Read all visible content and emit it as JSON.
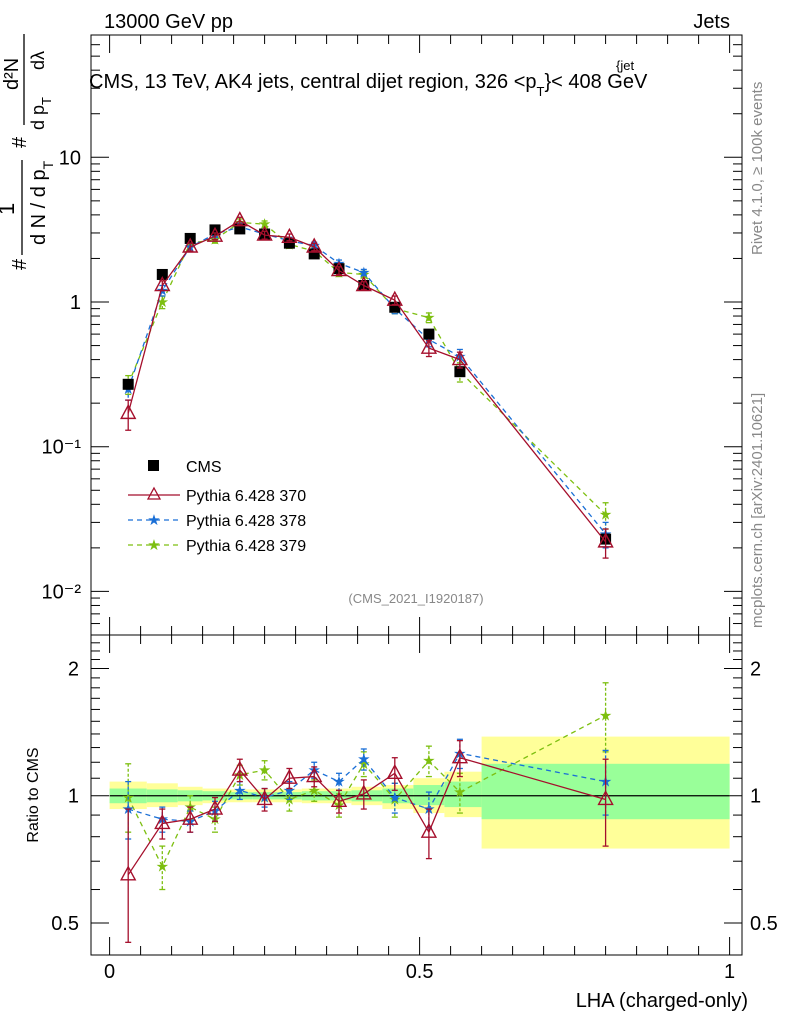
{
  "header": {
    "energy_label": "13000 GeV pp",
    "process_label": "Jets",
    "plot_title": "CMS, 13 TeV, AK4 jets, central dijet region, 326 <p",
    "plot_title_sub": "T",
    "plot_title_sup": "{jet",
    "plot_title_tail": "}< 408 GeV"
  },
  "side": {
    "rivet_label": "Rivet 4.1.0, ≥ 100k events",
    "mcplots_label": "mcplots.cern.ch [arXiv:2401.10621]"
  },
  "watermark": "(CMS_2021_I1920187)",
  "ylabel_top": {
    "hash_a": "#",
    "hash_b": "#",
    "one": "1",
    "dN": "d N / d p",
    "dN_sub": "T",
    "d2N": "d²N",
    "dpT": "d p",
    "dpT_sub": "T",
    "dlambda": "dλ"
  },
  "ylabel_bottom": "Ratio to CMS",
  "xlabel": "LHA (charged-only)",
  "colors": {
    "cms": "#000000",
    "p370": "#a50f2c",
    "p378": "#1a6fd6",
    "p379": "#7dbf10",
    "band_inner": "#99ff99",
    "band_outer": "#ffff99"
  },
  "chart_data": [
    {
      "type": "scatter",
      "scale": "log",
      "xlim": [
        -0.03,
        1.02
      ],
      "ylim": [
        0.005,
        70
      ],
      "ytick_labels": [
        "10⁻²",
        "10⁻¹",
        "1",
        "10"
      ],
      "legend_placement": "middle-left",
      "series": [
        {
          "name": "CMS",
          "x": [
            0.03,
            0.085,
            0.13,
            0.17,
            0.21,
            0.25,
            0.29,
            0.33,
            0.37,
            0.41,
            0.46,
            0.515,
            0.565,
            0.8
          ],
          "y": [
            0.27,
            1.55,
            2.75,
            3.15,
            3.2,
            2.95,
            2.55,
            2.15,
            1.7,
            1.3,
            0.92,
            0.6,
            0.33,
            0.023
          ]
        },
        {
          "name": "Pythia 6.428 370",
          "x": [
            0.03,
            0.085,
            0.13,
            0.17,
            0.21,
            0.25,
            0.29,
            0.33,
            0.37,
            0.41,
            0.46,
            0.515,
            0.565,
            0.8
          ],
          "y": [
            0.17,
            1.3,
            2.4,
            2.85,
            3.65,
            2.9,
            2.8,
            2.4,
            1.65,
            1.3,
            1.03,
            0.48,
            0.4,
            0.022
          ],
          "err_hi": [
            0.04,
            0.1,
            0.15,
            0.15,
            0.2,
            0.18,
            0.15,
            0.14,
            0.1,
            0.08,
            0.07,
            0.06,
            0.05,
            0.005
          ],
          "err_lo": [
            0.04,
            0.1,
            0.15,
            0.15,
            0.2,
            0.18,
            0.15,
            0.14,
            0.1,
            0.08,
            0.07,
            0.06,
            0.05,
            0.005
          ]
        },
        {
          "name": "Pythia 6.428 378",
          "x": [
            0.03,
            0.085,
            0.13,
            0.17,
            0.21,
            0.25,
            0.29,
            0.33,
            0.37,
            0.41,
            0.46,
            0.515,
            0.565,
            0.8
          ],
          "y": [
            0.25,
            1.2,
            2.4,
            2.95,
            3.3,
            2.95,
            2.65,
            2.45,
            1.85,
            1.6,
            0.9,
            0.55,
            0.42,
            0.025
          ],
          "err_hi": [
            0.04,
            0.1,
            0.15,
            0.15,
            0.2,
            0.18,
            0.15,
            0.14,
            0.1,
            0.08,
            0.07,
            0.06,
            0.05,
            0.005
          ],
          "err_lo": [
            0.04,
            0.1,
            0.15,
            0.15,
            0.2,
            0.18,
            0.15,
            0.14,
            0.1,
            0.08,
            0.07,
            0.06,
            0.05,
            0.005
          ]
        },
        {
          "name": "Pythia 6.428 379",
          "x": [
            0.03,
            0.085,
            0.13,
            0.17,
            0.21,
            0.25,
            0.29,
            0.33,
            0.37,
            0.41,
            0.46,
            0.515,
            0.565,
            0.8
          ],
          "y": [
            0.27,
            1.0,
            2.55,
            2.7,
            3.55,
            3.45,
            2.5,
            2.25,
            1.6,
            1.55,
            0.9,
            0.78,
            0.33,
            0.034
          ],
          "err_hi": [
            0.04,
            0.1,
            0.15,
            0.15,
            0.2,
            0.18,
            0.15,
            0.14,
            0.1,
            0.08,
            0.07,
            0.06,
            0.05,
            0.007
          ],
          "err_lo": [
            0.04,
            0.1,
            0.15,
            0.15,
            0.2,
            0.18,
            0.15,
            0.14,
            0.1,
            0.08,
            0.07,
            0.06,
            0.05,
            0.007
          ]
        }
      ]
    },
    {
      "type": "line",
      "scale": "log",
      "title": "Ratio to CMS",
      "xlabel": "LHA (charged-only)",
      "xlim": [
        -0.03,
        1.02
      ],
      "ylim": [
        0.42,
        2.4
      ],
      "xtick_labels": [
        "0",
        "0.5",
        "1"
      ],
      "ytick_labels": [
        "0.5",
        "1",
        "2"
      ],
      "bands": [
        {
          "x0": 0.0,
          "x1": 0.06,
          "inner": [
            0.96,
            1.04
          ],
          "outer": [
            0.93,
            1.08
          ]
        },
        {
          "x0": 0.06,
          "x1": 0.11,
          "inner": [
            0.965,
            1.035
          ],
          "outer": [
            0.94,
            1.07
          ]
        },
        {
          "x0": 0.11,
          "x1": 0.15,
          "inner": [
            0.97,
            1.03
          ],
          "outer": [
            0.95,
            1.05
          ]
        },
        {
          "x0": 0.15,
          "x1": 0.19,
          "inner": [
            0.975,
            1.025
          ],
          "outer": [
            0.96,
            1.04
          ]
        },
        {
          "x0": 0.19,
          "x1": 0.23,
          "inner": [
            0.98,
            1.02
          ],
          "outer": [
            0.965,
            1.035
          ]
        },
        {
          "x0": 0.23,
          "x1": 0.31,
          "inner": [
            0.98,
            1.02
          ],
          "outer": [
            0.965,
            1.035
          ]
        },
        {
          "x0": 0.31,
          "x1": 0.39,
          "inner": [
            0.975,
            1.025
          ],
          "outer": [
            0.96,
            1.04
          ]
        },
        {
          "x0": 0.39,
          "x1": 0.44,
          "inner": [
            0.97,
            1.03
          ],
          "outer": [
            0.95,
            1.05
          ]
        },
        {
          "x0": 0.44,
          "x1": 0.49,
          "inner": [
            0.96,
            1.04
          ],
          "outer": [
            0.93,
            1.06
          ]
        },
        {
          "x0": 0.49,
          "x1": 0.54,
          "inner": [
            0.95,
            1.06
          ],
          "outer": [
            0.91,
            1.1
          ]
        },
        {
          "x0": 0.54,
          "x1": 0.6,
          "inner": [
            0.94,
            1.08
          ],
          "outer": [
            0.89,
            1.14
          ]
        },
        {
          "x0": 0.6,
          "x1": 1.0,
          "inner": [
            0.88,
            1.19
          ],
          "outer": [
            0.75,
            1.38
          ]
        }
      ],
      "series": [
        {
          "name": "Pythia 6.428 370",
          "x": [
            0.03,
            0.085,
            0.13,
            0.17,
            0.21,
            0.25,
            0.29,
            0.33,
            0.37,
            0.41,
            0.46,
            0.515,
            0.565,
            0.8
          ],
          "y": [
            0.65,
            0.86,
            0.88,
            0.93,
            1.15,
            0.98,
            1.1,
            1.11,
            0.97,
            1.01,
            1.13,
            0.82,
            1.23,
            0.98
          ],
          "err_hi": [
            0.28,
            0.07,
            0.06,
            0.06,
            0.07,
            0.06,
            0.06,
            0.06,
            0.06,
            0.08,
            0.1,
            0.11,
            0.12,
            0.24
          ],
          "err_lo": [
            0.2,
            0.07,
            0.06,
            0.06,
            0.07,
            0.06,
            0.06,
            0.06,
            0.06,
            0.08,
            0.1,
            0.11,
            0.12,
            0.22
          ]
        },
        {
          "name": "Pythia 6.428 378",
          "x": [
            0.03,
            0.085,
            0.13,
            0.17,
            0.21,
            0.25,
            0.29,
            0.33,
            0.37,
            0.41,
            0.46,
            0.515,
            0.565,
            0.8
          ],
          "y": [
            0.93,
            0.88,
            0.87,
            0.92,
            1.03,
            0.99,
            1.03,
            1.15,
            1.08,
            1.22,
            0.99,
            0.93,
            1.26,
            1.08
          ],
          "err_hi": [
            0.15,
            0.06,
            0.05,
            0.05,
            0.05,
            0.05,
            0.05,
            0.05,
            0.05,
            0.07,
            0.08,
            0.09,
            0.1,
            0.2
          ],
          "err_lo": [
            0.14,
            0.06,
            0.05,
            0.05,
            0.05,
            0.05,
            0.05,
            0.05,
            0.05,
            0.07,
            0.08,
            0.09,
            0.1,
            0.18
          ]
        },
        {
          "name": "Pythia 6.428 379",
          "x": [
            0.03,
            0.085,
            0.13,
            0.17,
            0.21,
            0.25,
            0.29,
            0.33,
            0.37,
            0.41,
            0.46,
            0.515,
            0.565,
            0.8
          ],
          "y": [
            0.99,
            0.68,
            0.94,
            0.88,
            1.12,
            1.15,
            0.98,
            1.03,
            0.95,
            1.19,
            0.98,
            1.21,
            1.02,
            1.55
          ],
          "err_hi": [
            0.2,
            0.08,
            0.06,
            0.06,
            0.06,
            0.06,
            0.06,
            0.06,
            0.06,
            0.08,
            0.09,
            0.1,
            0.11,
            0.3
          ],
          "err_lo": [
            0.17,
            0.08,
            0.06,
            0.06,
            0.06,
            0.06,
            0.06,
            0.06,
            0.06,
            0.08,
            0.09,
            0.1,
            0.11,
            0.28
          ]
        }
      ]
    }
  ]
}
